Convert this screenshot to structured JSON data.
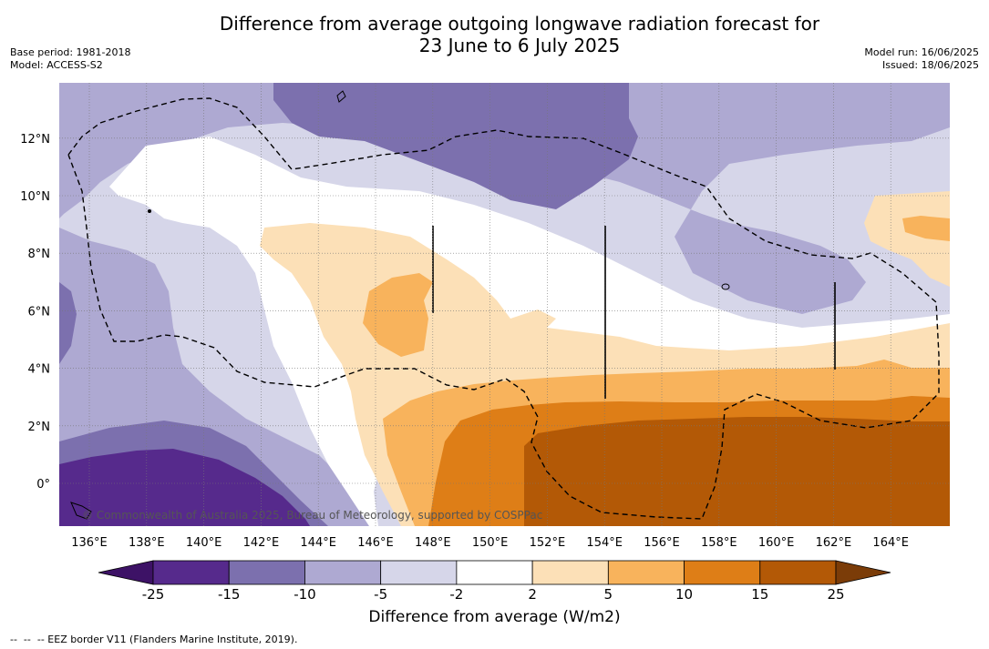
{
  "title": {
    "line1": "Difference from average outgoing longwave radiation forecast for",
    "line2": "23 June to 6 July 2025"
  },
  "meta_left": {
    "base_period": "Base period: 1981-2018",
    "model": "Model: ACCESS-S2"
  },
  "meta_right": {
    "model_run": "Model run: 16/06/2025",
    "issued": "Issued: 18/06/2025"
  },
  "map": {
    "x_ticks": [
      "136°E",
      "138°E",
      "140°E",
      "142°E",
      "144°E",
      "146°E",
      "148°E",
      "150°E",
      "152°E",
      "154°E",
      "156°E",
      "158°E",
      "160°E",
      "162°E",
      "164°E"
    ],
    "y_ticks": [
      "12°N",
      "10°N",
      "8°N",
      "6°N",
      "4°N",
      "2°N",
      "0°"
    ],
    "copyright": "© Commonwealth of Australia 2025, Bureau of Meteorology, supported by COSPPac",
    "gridlines": "dotted"
  },
  "colorbar": {
    "ticks": [
      "-25",
      "-15",
      "-10",
      "-5",
      "-2",
      "2",
      "5",
      "10",
      "15",
      "25"
    ],
    "colors": [
      "#3d1266",
      "#562a8c",
      "#7c70ae",
      "#aea9d2",
      "#d6d6e9",
      "#ffffff",
      "#fce0b7",
      "#f8b35c",
      "#de7e17",
      "#b35906",
      "#7b3c08"
    ],
    "label": "Difference from average (W/m2)"
  },
  "footnote": "--  --  -- EEZ border V11 (Flanders Marine Institute, 2019)."
}
